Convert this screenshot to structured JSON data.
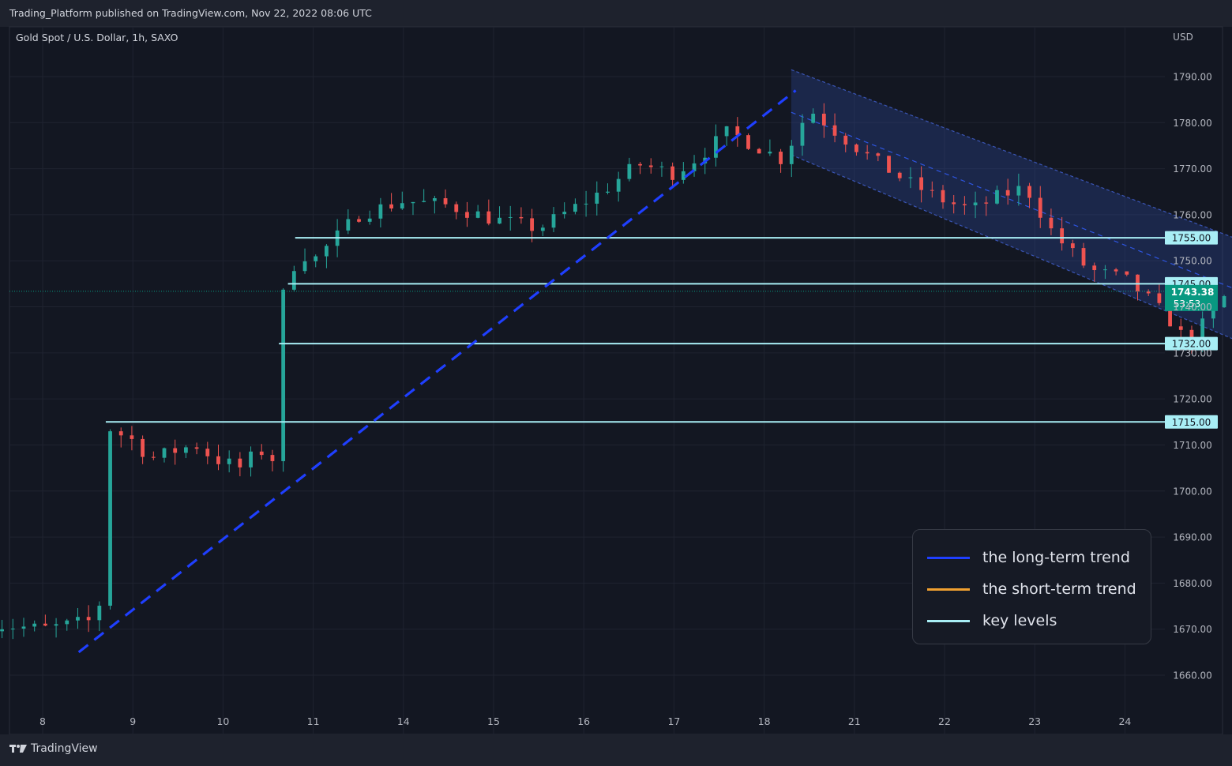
{
  "header": {
    "published_text": "Trading_Platform published on TradingView.com, Nov 22, 2022 08:06 UTC",
    "symbol_text": "Gold Spot / U.S. Dollar, 1h, SAXO",
    "currency": "USD"
  },
  "footer": {
    "brand": "TradingView"
  },
  "legend": [
    {
      "label": "the long-term trend",
      "color": "#1f3fff"
    },
    {
      "label": "the short-term trend",
      "color": "#f0a030"
    },
    {
      "label": "key levels",
      "color": "#a8eef5"
    }
  ],
  "price_badge": {
    "price": "1743.38",
    "countdown": "53:53",
    "color": "#089981"
  },
  "chart_data": {
    "type": "candlestick",
    "title": "Gold Spot / U.S. Dollar, 1h, SAXO",
    "y_axis": {
      "unit": "USD",
      "ylim": [
        1655,
        1797
      ],
      "tick_labels": [
        "1790.00",
        "1780.00",
        "1770.00",
        "1760.00",
        "1750.00",
        "1740.00",
        "1730.00",
        "1720.00",
        "1710.00",
        "1700.00",
        "1690.00",
        "1680.00",
        "1670.00",
        "1660.00"
      ]
    },
    "x_axis": {
      "tick_labels": [
        "8",
        "9",
        "10",
        "11",
        "14",
        "15",
        "16",
        "17",
        "18",
        "21",
        "22",
        "23",
        "24"
      ]
    },
    "colors": {
      "up": "#26a69a",
      "down": "#ef5350",
      "channel": "#2f4a9e",
      "long_trend": "#1f3fff",
      "short_trend": "#f0a030",
      "key_level": "#a8eef5"
    },
    "price_path": [
      [
        0,
        1679
      ],
      [
        3,
        1676
      ],
      [
        6,
        1674
      ],
      [
        8,
        1670
      ],
      [
        8.6,
        1672
      ],
      [
        8.65,
        1678
      ],
      [
        8.7,
        1714
      ],
      [
        9.0,
        1711
      ],
      [
        9.2,
        1707
      ],
      [
        9.5,
        1709
      ],
      [
        9.7,
        1710
      ],
      [
        9.9,
        1707
      ],
      [
        10.2,
        1705
      ],
      [
        10.4,
        1709
      ],
      [
        10.55,
        1707
      ],
      [
        10.6,
        1710
      ],
      [
        10.62,
        1731
      ],
      [
        10.66,
        1742
      ],
      [
        10.72,
        1746
      ],
      [
        10.85,
        1752
      ],
      [
        11.0,
        1750
      ],
      [
        11.2,
        1754
      ],
      [
        11.5,
        1760
      ],
      [
        12.0,
        1763
      ],
      [
        12.5,
        1762
      ],
      [
        13.0,
        1759
      ],
      [
        13.5,
        1757
      ],
      [
        14.2,
        1765
      ],
      [
        14.6,
        1771
      ],
      [
        15.0,
        1769
      ],
      [
        15.3,
        1773
      ],
      [
        15.6,
        1778
      ],
      [
        16.0,
        1774
      ],
      [
        16.2,
        1772
      ],
      [
        16.5,
        1783
      ],
      [
        16.8,
        1778
      ],
      [
        17.2,
        1772
      ],
      [
        17.6,
        1767
      ],
      [
        18.0,
        1763
      ],
      [
        18.3,
        1761
      ],
      [
        18.6,
        1764
      ],
      [
        18.9,
        1766
      ],
      [
        19.2,
        1756
      ],
      [
        19.6,
        1748
      ],
      [
        20.0,
        1746
      ],
      [
        20.3,
        1741
      ],
      [
        20.5,
        1737
      ],
      [
        20.7,
        1732
      ],
      [
        20.9,
        1737
      ],
      [
        21.1,
        1742
      ],
      [
        21.3,
        1745
      ],
      [
        21.5,
        1743.38
      ]
    ],
    "candle_count": 118,
    "key_levels": [
      {
        "label": "1755.00",
        "price": 1755,
        "from_index": 10.8
      },
      {
        "label": "1745.00",
        "price": 1745,
        "from_index": 10.72
      },
      {
        "label": "1732.00",
        "price": 1732,
        "from_index": 10.62
      },
      {
        "label": "1715.00",
        "price": 1715,
        "from_index": 8.7
      }
    ],
    "long_trend": [
      [
        8.4,
        1665
      ],
      [
        16.35,
        1787
      ]
    ],
    "short_trend": [
      [
        21.65,
        1732
      ],
      [
        22.5,
        1743
      ]
    ],
    "channel": {
      "top_start": [
        16.3,
        1791.5
      ],
      "top_end": [
        22.55,
        1745
      ],
      "bottom_start": [
        16.3,
        1773
      ],
      "bottom_end": [
        22.55,
        1722
      ]
    },
    "projection_arrow": [
      [
        22.35,
        1740
      ],
      [
        22.5,
        1732
      ],
      [
        22.8,
        1737.5
      ]
    ],
    "last_price": 1743.38
  }
}
